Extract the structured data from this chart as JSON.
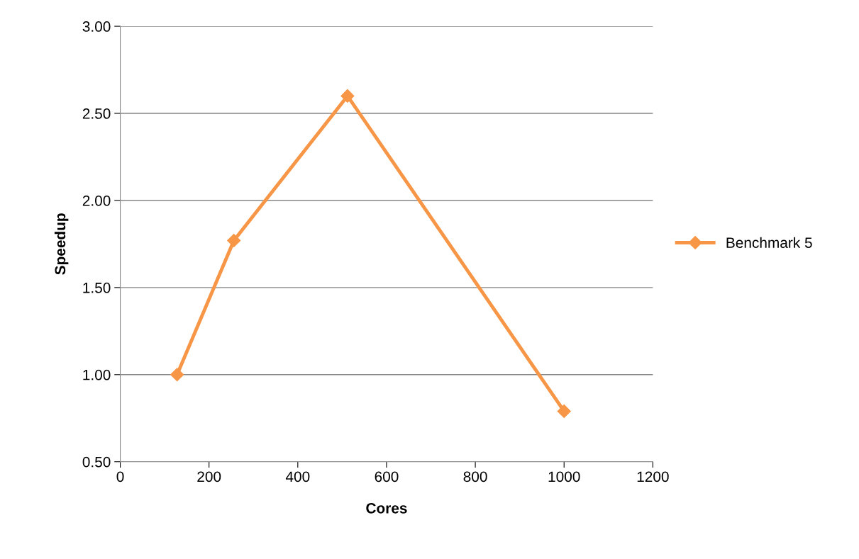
{
  "chart_data": {
    "type": "line",
    "xlabel": "Cores",
    "ylabel": "Speedup",
    "x": [
      128,
      256,
      512,
      1000
    ],
    "series": [
      {
        "name": "Benchmark 5",
        "color": "#f79646",
        "values": [
          1.0,
          1.77,
          2.6,
          0.79
        ]
      }
    ],
    "xlim": [
      0,
      1200
    ],
    "xticks": [
      0,
      200,
      400,
      600,
      800,
      1000,
      1200
    ],
    "ylim": [
      0.5,
      3.0
    ],
    "yticks": [
      {
        "value": 0.5,
        "label": "0.50"
      },
      {
        "value": 1.0,
        "label": "1.00"
      },
      {
        "value": 1.5,
        "label": "1.50"
      },
      {
        "value": 2.0,
        "label": "2.00"
      },
      {
        "value": 2.5,
        "label": "2.50"
      },
      {
        "value": 3.0,
        "label": "3.00"
      }
    ],
    "grid": "y",
    "legend": "right",
    "marker": "diamond",
    "line_style": "solid"
  }
}
